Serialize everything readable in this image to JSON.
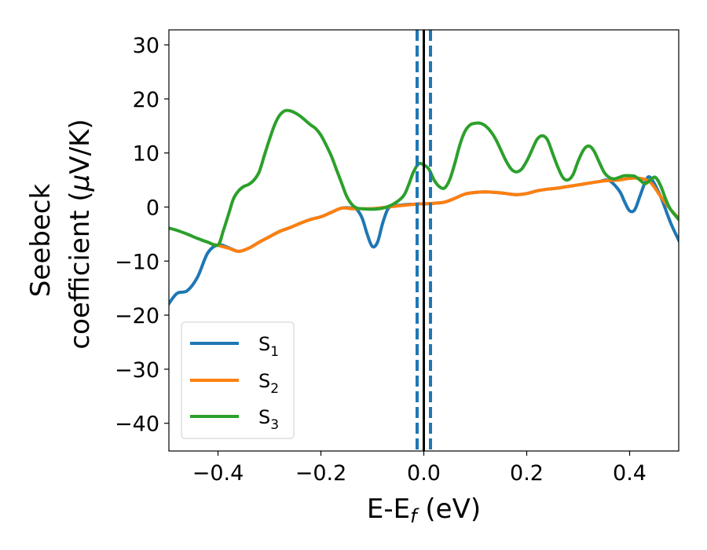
{
  "chart_data": {
    "type": "line",
    "xlabel": "E-E",
    "xlabel_sub": "f",
    "xlabel_unit": " (eV)",
    "ylabel_line1": "Seebeck",
    "ylabel_line2_text": "coefficient  (",
    "ylabel_mu": "μ",
    "ylabel_unit": "V/K)",
    "xlim": [
      -0.5,
      0.5
    ],
    "ylim": [
      -45,
      33
    ],
    "xticks": [
      -0.4,
      -0.2,
      0.0,
      0.2,
      0.4
    ],
    "xtick_labels": [
      "−0.4",
      "−0.2",
      "0.0",
      "0.2",
      "0.4"
    ],
    "yticks": [
      30,
      20,
      10,
      0,
      -10,
      -20,
      -30,
      -40
    ],
    "ytick_labels": [
      "30",
      "20",
      "10",
      "0",
      "−10",
      "−20",
      "−30",
      "−40"
    ],
    "grid": false,
    "legend_position": "lower-left",
    "vlines": [
      {
        "x": 0.0,
        "color": "#000000",
        "style": "solid"
      },
      {
        "x": -0.013,
        "color": "#1f77b4",
        "style": "dashed"
      },
      {
        "x": 0.013,
        "color": "#1f77b4",
        "style": "dashed"
      }
    ],
    "series": [
      {
        "name": "S",
        "sub": "1",
        "color": "#1f77b4",
        "x": [
          -0.5,
          -0.48,
          -0.46,
          -0.44,
          -0.42,
          -0.4,
          -0.38,
          -0.36,
          -0.34,
          -0.32,
          -0.3,
          -0.28,
          -0.26,
          -0.24,
          -0.22,
          -0.2,
          -0.18,
          -0.16,
          -0.14,
          -0.13,
          -0.12,
          -0.11,
          -0.1,
          -0.09,
          -0.08,
          -0.07,
          -0.06,
          -0.05,
          -0.04,
          -0.03,
          -0.02,
          -0.01,
          0.0,
          0.02,
          0.04,
          0.06,
          0.08,
          0.1,
          0.12,
          0.14,
          0.16,
          0.18,
          0.2,
          0.22,
          0.24,
          0.26,
          0.28,
          0.3,
          0.32,
          0.34,
          0.36,
          0.38,
          0.39,
          0.4,
          0.41,
          0.42,
          0.43,
          0.44,
          0.46,
          0.48,
          0.5
        ],
        "y": [
          -18.5,
          -16.0,
          -15.5,
          -13.0,
          -8.5,
          -7.0,
          -7.5,
          -8.2,
          -7.6,
          -6.5,
          -5.5,
          -4.5,
          -3.8,
          -3.0,
          -2.3,
          -1.8,
          -1.0,
          -0.2,
          -0.2,
          -0.5,
          -2.0,
          -5.0,
          -7.3,
          -6.5,
          -3.0,
          -0.4,
          0.2,
          0.3,
          0.4,
          0.5,
          0.5,
          0.6,
          0.6,
          0.7,
          0.9,
          1.6,
          2.4,
          2.7,
          2.8,
          2.7,
          2.5,
          2.3,
          2.5,
          3.0,
          3.3,
          3.5,
          3.8,
          4.1,
          4.4,
          4.7,
          4.9,
          3.0,
          1.0,
          -0.7,
          -0.5,
          2.0,
          4.5,
          5.5,
          2.0,
          -3.0,
          -7.0
        ]
      },
      {
        "name": "S",
        "sub": "2",
        "color": "#ff7f0e",
        "x": [
          -0.41,
          -0.4,
          -0.38,
          -0.36,
          -0.34,
          -0.32,
          -0.3,
          -0.28,
          -0.26,
          -0.24,
          -0.22,
          -0.2,
          -0.18,
          -0.16,
          -0.14,
          -0.12,
          -0.1,
          -0.08,
          -0.06,
          -0.04,
          -0.02,
          0.0,
          0.02,
          0.04,
          0.06,
          0.08,
          0.1,
          0.12,
          0.14,
          0.16,
          0.18,
          0.2,
          0.22,
          0.24,
          0.26,
          0.28,
          0.3,
          0.32,
          0.34,
          0.36,
          0.38,
          0.4,
          0.42,
          0.44,
          0.46,
          0.48,
          0.5
        ],
        "y": [
          -6.9,
          -7.1,
          -7.6,
          -8.2,
          -7.6,
          -6.5,
          -5.5,
          -4.5,
          -3.8,
          -3.0,
          -2.3,
          -1.8,
          -1.0,
          -0.2,
          -0.3,
          -0.3,
          -0.3,
          -0.1,
          0.1,
          0.3,
          0.5,
          0.6,
          0.7,
          0.9,
          1.6,
          2.4,
          2.7,
          2.8,
          2.7,
          2.5,
          2.3,
          2.5,
          3.0,
          3.3,
          3.5,
          3.8,
          4.1,
          4.4,
          4.7,
          4.9,
          5.0,
          5.3,
          5.3,
          4.6,
          2.0,
          -0.5,
          -2.5
        ]
      },
      {
        "name": "S",
        "sub": "3",
        "color": "#2ca02c",
        "x": [
          -0.5,
          -0.48,
          -0.46,
          -0.44,
          -0.42,
          -0.4,
          -0.39,
          -0.38,
          -0.37,
          -0.36,
          -0.35,
          -0.34,
          -0.33,
          -0.32,
          -0.31,
          -0.3,
          -0.29,
          -0.28,
          -0.27,
          -0.26,
          -0.25,
          -0.24,
          -0.23,
          -0.22,
          -0.21,
          -0.2,
          -0.19,
          -0.18,
          -0.17,
          -0.16,
          -0.15,
          -0.14,
          -0.13,
          -0.12,
          -0.1,
          -0.08,
          -0.06,
          -0.04,
          -0.03,
          -0.02,
          -0.01,
          0.0,
          0.01,
          0.02,
          0.03,
          0.04,
          0.05,
          0.06,
          0.07,
          0.08,
          0.09,
          0.1,
          0.11,
          0.12,
          0.13,
          0.14,
          0.15,
          0.16,
          0.17,
          0.18,
          0.19,
          0.2,
          0.21,
          0.22,
          0.23,
          0.24,
          0.25,
          0.26,
          0.27,
          0.28,
          0.29,
          0.3,
          0.31,
          0.32,
          0.33,
          0.34,
          0.35,
          0.36,
          0.37,
          0.38,
          0.39,
          0.4,
          0.41,
          0.42,
          0.43,
          0.44,
          0.45,
          0.46,
          0.47,
          0.48,
          0.5
        ],
        "y": [
          -3.8,
          -4.3,
          -5.0,
          -5.8,
          -6.5,
          -7.0,
          -4.5,
          -1.5,
          1.5,
          3.0,
          3.8,
          4.2,
          5.0,
          6.5,
          9.5,
          12.5,
          15.2,
          17.0,
          17.8,
          17.8,
          17.4,
          16.8,
          16.0,
          15.2,
          14.5,
          13.3,
          11.5,
          9.5,
          7.0,
          4.5,
          2.0,
          0.5,
          -0.2,
          -0.3,
          -0.4,
          -0.2,
          0.5,
          2.0,
          4.0,
          6.5,
          8.0,
          7.8,
          7.0,
          5.0,
          3.8,
          3.5,
          5.0,
          8.0,
          11.5,
          14.0,
          15.2,
          15.5,
          15.5,
          15.0,
          14.0,
          12.5,
          10.5,
          8.5,
          7.0,
          6.5,
          7.0,
          8.5,
          10.5,
          12.5,
          13.2,
          12.5,
          10.0,
          7.5,
          5.5,
          5.0,
          6.0,
          8.5,
          10.5,
          11.3,
          10.5,
          8.5,
          6.5,
          5.5,
          5.2,
          5.5,
          5.8,
          5.8,
          5.7,
          5.0,
          4.3,
          5.0,
          5.5,
          4.0,
          1.5,
          -0.5,
          -2.8
        ]
      }
    ]
  }
}
